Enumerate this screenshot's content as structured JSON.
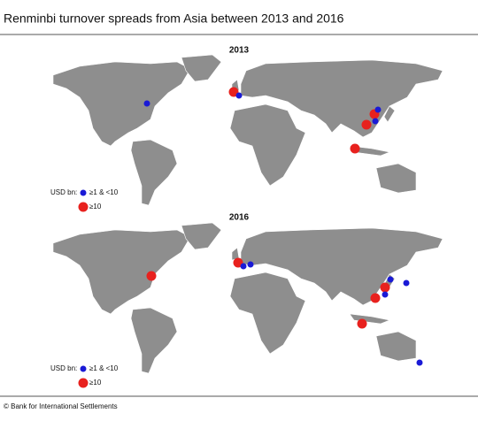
{
  "header": {
    "title": "Renminbi turnover spreads from Asia between 2013 and 2016"
  },
  "maps": [
    {
      "title": "2013",
      "legend": {
        "heading": "USD bn:",
        "items": [
          "≥1 & <10",
          "≥10"
        ]
      }
    },
    {
      "title": "2016",
      "legend": {
        "heading": "USD bn:",
        "items": [
          "≥1 & <10",
          "≥10"
        ]
      }
    }
  ],
  "footer": {
    "source": "© Bank for International Settlements"
  }
}
